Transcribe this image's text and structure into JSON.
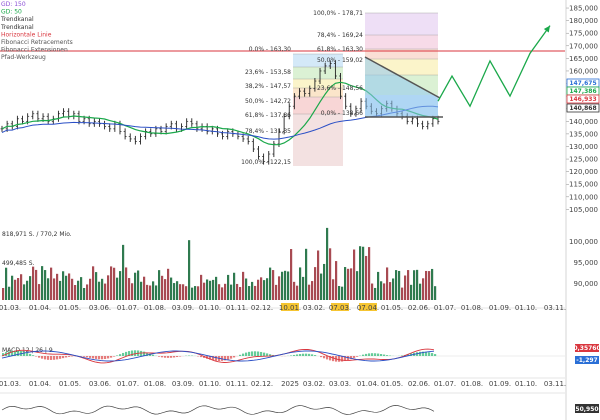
{
  "legend": [
    {
      "label": "GD: 150",
      "color": "#8a4fd6"
    },
    {
      "label": "GD: 50",
      "color": "#1aa84a"
    },
    {
      "label": "Trendkanal",
      "color": "#333333"
    },
    {
      "label": "Trendkanal",
      "color": "#333333"
    },
    {
      "label": "Horizontale Linie",
      "color": "#d9363e"
    },
    {
      "label": "Fibonacci Retracements",
      "color": "#555555"
    },
    {
      "label": "Fibonacci Extensionen",
      "color": "#555555"
    },
    {
      "label": "Pfad-Werkzeug",
      "color": "#555555"
    }
  ],
  "fib_retracement": {
    "levels": [
      {
        "label": "0.0% - 163,30",
        "value": 163.3
      },
      {
        "label": "23,6% - 153,58",
        "value": 153.58
      },
      {
        "label": "38,2% - 147,57",
        "value": 147.57
      },
      {
        "label": "50,0% - 142,72",
        "value": 142.72
      },
      {
        "label": "61,8% - 137,86",
        "value": 137.86
      },
      {
        "label": "78,4% - 131,35",
        "value": 131.35
      },
      {
        "label": "100,0% - 122,15",
        "value": 122.15
      }
    ]
  },
  "fib_extension": {
    "levels": [
      {
        "label": "100,0% - 178,71",
        "value": 178.71
      },
      {
        "label": "78,4% - 169,24",
        "value": 169.24
      },
      {
        "label": "61,8% - 163,30",
        "value": 163.3
      },
      {
        "label": "50,0% - 159,02",
        "value": 159.02
      },
      {
        "label": "23,6% - 148,56",
        "value": 148.56
      },
      {
        "label": "0,0% - 138,66",
        "value": 138.66
      }
    ]
  },
  "price_tags": [
    {
      "label": "147,675",
      "value": 147.675,
      "color": "#2a6fd6"
    },
    {
      "label": "147,386",
      "value": 147.386,
      "color": "#1aa84a"
    },
    {
      "label": "146,933",
      "value": 146.933,
      "color": "#d9363e"
    },
    {
      "label": "140,868",
      "value": 140.868,
      "color": "#333333"
    }
  ],
  "volume_label": "818,971 S. / 770,2 Mio.",
  "volume_avg_label": "499,485 S.",
  "macd_label": "MACD 12 | 26 | 9",
  "macd_tags": [
    {
      "label": "0,35760",
      "color": "#d9363e"
    },
    {
      "label": "-1,297",
      "color": "#2a6fd6"
    }
  ],
  "bottom_tag": "50,950",
  "price_axis": [
    "185,000",
    "180,000",
    "175,000",
    "170,000",
    "165,000",
    "160,000",
    "155,000",
    "150,000",
    "145,000",
    "140,000",
    "135,000",
    "130,000",
    "125,000",
    "120,000",
    "115,000",
    "110,000",
    "105,000"
  ],
  "volume_axis": [
    "100,000",
    "95,000",
    "90,000"
  ],
  "date_axis_top": [
    "01.03.",
    "01.04.",
    "01.05.",
    "03.06.",
    "01.07.",
    "01.08.",
    "03.09.",
    "01.10.",
    "01.11.",
    "02.12.",
    "10.01.",
    "03.02.",
    "07.03.",
    "07.04.",
    "01.05.",
    "02.06.",
    "01.07.",
    "01.08.",
    "01.09.",
    "01.10.",
    "03.11."
  ],
  "date_axis_bottom": [
    "01.03.",
    "01.04.",
    "01.05.",
    "03.06.",
    "01.07.",
    "01.08.",
    "03.09.",
    "01.10.",
    "01.11.",
    "02.12.",
    "2025",
    "03.02.",
    "03.03.",
    "01.04.",
    "01.05.",
    "02.06.",
    "01.07.",
    "01.08.",
    "01.09.",
    "01.10.",
    "03.11."
  ],
  "highlighted_dates": [
    "10.01.",
    "07.03.",
    "07.04."
  ],
  "chart_data": {
    "type": "line",
    "title": "",
    "price_range": [
      100,
      187
    ],
    "horizontal_line": 163.3,
    "path_tool_points": [
      148,
      158,
      146,
      164,
      150,
      167,
      178
    ],
    "price_series": [
      137,
      139,
      138,
      141,
      140,
      142,
      143,
      141,
      142,
      140,
      141,
      143,
      144,
      142,
      143,
      140,
      141,
      139,
      140,
      139,
      138,
      137,
      139,
      136,
      134,
      133,
      132,
      134,
      136,
      135,
      137,
      136,
      138,
      139,
      137,
      138,
      140,
      139,
      137,
      138,
      136,
      137,
      135,
      134,
      136,
      135,
      134,
      133,
      132,
      129,
      126,
      124,
      127,
      131,
      136,
      142,
      146,
      150,
      152,
      151,
      153,
      156,
      160,
      162,
      163,
      158,
      150,
      146,
      143,
      145,
      148,
      146,
      144,
      143,
      145,
      147,
      145,
      143,
      142,
      140,
      141,
      139,
      138,
      139,
      141,
      140
    ]
  }
}
